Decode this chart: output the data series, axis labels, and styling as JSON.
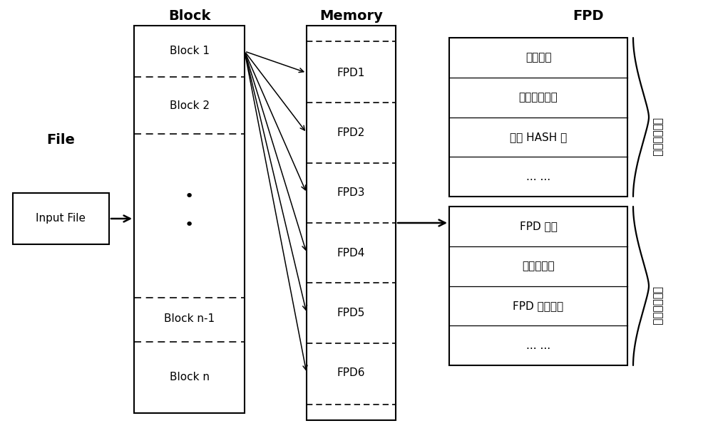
{
  "bg_color": "#ffffff",
  "title_color": "#000000",
  "file_label": "File",
  "file_box_text": "Input File",
  "block_label": "Block",
  "memory_label": "Memory",
  "memory_items": [
    "FPD1",
    "FPD2",
    "FPD3",
    "FPD4",
    "FPD5",
    "FPD6"
  ],
  "fpd_label": "FPD",
  "fpd_upper_items": [
    "分块路径",
    "分块创建时间",
    "分块 HASH 値",
    "... ..."
  ],
  "fpd_lower_items": [
    "FPD 权値",
    "被引用次数",
    "FPD 创建时间",
    "... ..."
  ],
  "fpd_upper_label": "分块信息部分",
  "fpd_lower_label": "指纹信息部分"
}
